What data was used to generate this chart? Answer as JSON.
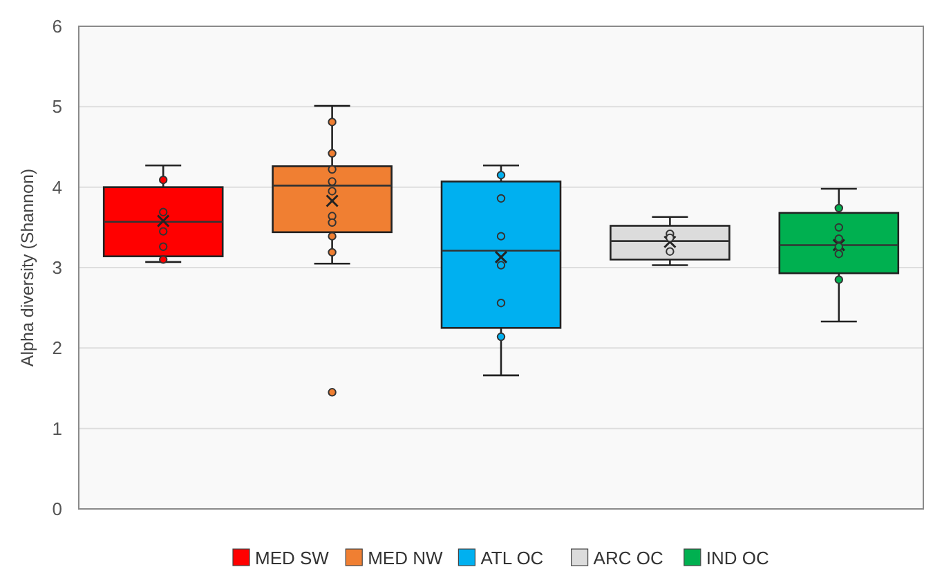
{
  "chart_data": {
    "type": "box",
    "ylabel": "Alpha diversity (Shannon)",
    "categories": [
      null,
      null,
      null,
      null,
      null
    ],
    "series": [
      {
        "type": "box",
        "name": "MED SW",
        "color": "#ff0000",
        "boxes": [
          {
            "low": 3.07,
            "q1": 3.14,
            "median": 3.57,
            "q3": 4.0,
            "high": 4.27,
            "mean": 3.58
          },
          null,
          null,
          null,
          null
        ]
      },
      {
        "type": "box",
        "name": "MED NW",
        "color": "#f07f32",
        "boxes": [
          null,
          {
            "low": 3.05,
            "q1": 3.44,
            "median": 4.02,
            "q3": 4.26,
            "high": 5.01,
            "mean": 3.83,
            "outliers": [
              1.45
            ]
          },
          null,
          null,
          null
        ]
      },
      {
        "type": "box",
        "name": "ATL OC",
        "color": "#00b0f0",
        "boxes": [
          null,
          null,
          {
            "low": 1.66,
            "q1": 2.25,
            "median": 3.21,
            "q3": 4.07,
            "high": 4.27,
            "mean": 3.13
          },
          null,
          null
        ]
      },
      {
        "type": "box",
        "name": "ARC OC",
        "color": "#dcdcdc",
        "boxes": [
          null,
          null,
          null,
          {
            "low": 3.03,
            "q1": 3.1,
            "median": 3.33,
            "q3": 3.52,
            "high": 3.63,
            "mean": 3.32
          },
          null
        ]
      },
      {
        "type": "box",
        "name": "IND OC",
        "color": "#00b050",
        "boxes": [
          null,
          null,
          null,
          null,
          {
            "low": 2.33,
            "q1": 2.93,
            "median": 3.28,
            "q3": 3.68,
            "high": 3.98,
            "mean": 3.28
          }
        ]
      },
      {
        "type": "scatter",
        "colors": [
          "#ff0000",
          "#f07f32",
          "#00b0f0",
          "#dcdcdc",
          "#00b050"
        ],
        "values": [
          4.09,
          4.81,
          4.15,
          3.42,
          3.74
        ]
      },
      {
        "type": "scatter",
        "colors": [
          "#ff0000",
          "#f07f32",
          "#00b0f0",
          "#dcdcdc",
          "#00b050"
        ],
        "values": [
          3.69,
          4.42,
          3.86,
          3.37,
          3.5
        ]
      },
      {
        "type": "scatter",
        "colors": [
          "#ff0000",
          "#f07f32",
          "#00b0f0",
          "#dcdcdc",
          "#00b050"
        ],
        "values": [
          3.45,
          4.22,
          3.39,
          3.2,
          3.36
        ]
      },
      {
        "type": "scatter",
        "colors": [
          "#ff0000",
          "#f07f32",
          "#00b0f0",
          "#dcdcdc",
          "#00b050"
        ],
        "values": [
          3.26,
          4.07,
          3.03,
          null,
          3.26
        ]
      },
      {
        "type": "scatter",
        "colors": [
          "#ff0000",
          "#f07f32",
          "#00b0f0",
          "#dcdcdc",
          "#00b050"
        ],
        "values": [
          3.1,
          3.95,
          2.56,
          null,
          3.17
        ]
      },
      {
        "type": "scatter",
        "colors": [
          "#ff0000",
          "#f07f32",
          "#00b0f0",
          "#dcdcdc",
          "#00b050"
        ],
        "values": [
          null,
          3.64,
          2.14,
          null,
          2.85
        ]
      },
      {
        "type": "scatter",
        "color": "#f07f32",
        "values": [
          null,
          3.56,
          null,
          null,
          null
        ]
      },
      {
        "type": "scatter",
        "color": "#f07f32",
        "values": [
          null,
          3.39,
          null,
          null,
          null
        ]
      },
      {
        "type": "scatter",
        "color": "#f07f32",
        "values": [
          null,
          3.19,
          null,
          null,
          null
        ]
      }
    ],
    "ylim": [
      0,
      6
    ],
    "yticks": [
      0,
      1,
      2,
      3,
      4,
      5,
      6
    ],
    "grid": "y",
    "legend": "bottom",
    "tick_labels": "y",
    "marker": "circle"
  }
}
